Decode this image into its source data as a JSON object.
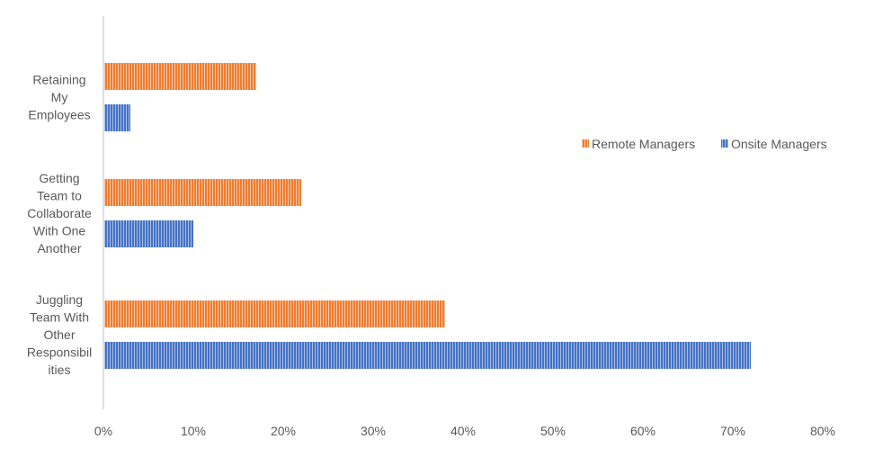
{
  "chart_data": {
    "type": "bar",
    "orientation": "horizontal",
    "categories": [
      [
        "Retaining",
        "My",
        "Employees"
      ],
      [
        "Getting",
        "Team to",
        "Collaborate",
        "With One",
        "Another"
      ],
      [
        "Juggling",
        "Team With",
        "Other",
        "Responsibil",
        "ities"
      ]
    ],
    "series": [
      {
        "name": "Remote Managers",
        "color": "#ED7D31",
        "values": [
          17,
          22,
          38
        ]
      },
      {
        "name": "Onsite Managers",
        "color": "#4472C4",
        "values": [
          3,
          10,
          72
        ]
      }
    ],
    "xlim": [
      0,
      80
    ],
    "xticks": [
      0,
      10,
      20,
      30,
      40,
      50,
      60,
      70,
      80
    ],
    "tick_suffix": "%",
    "grid": false,
    "legend_position": "right"
  }
}
